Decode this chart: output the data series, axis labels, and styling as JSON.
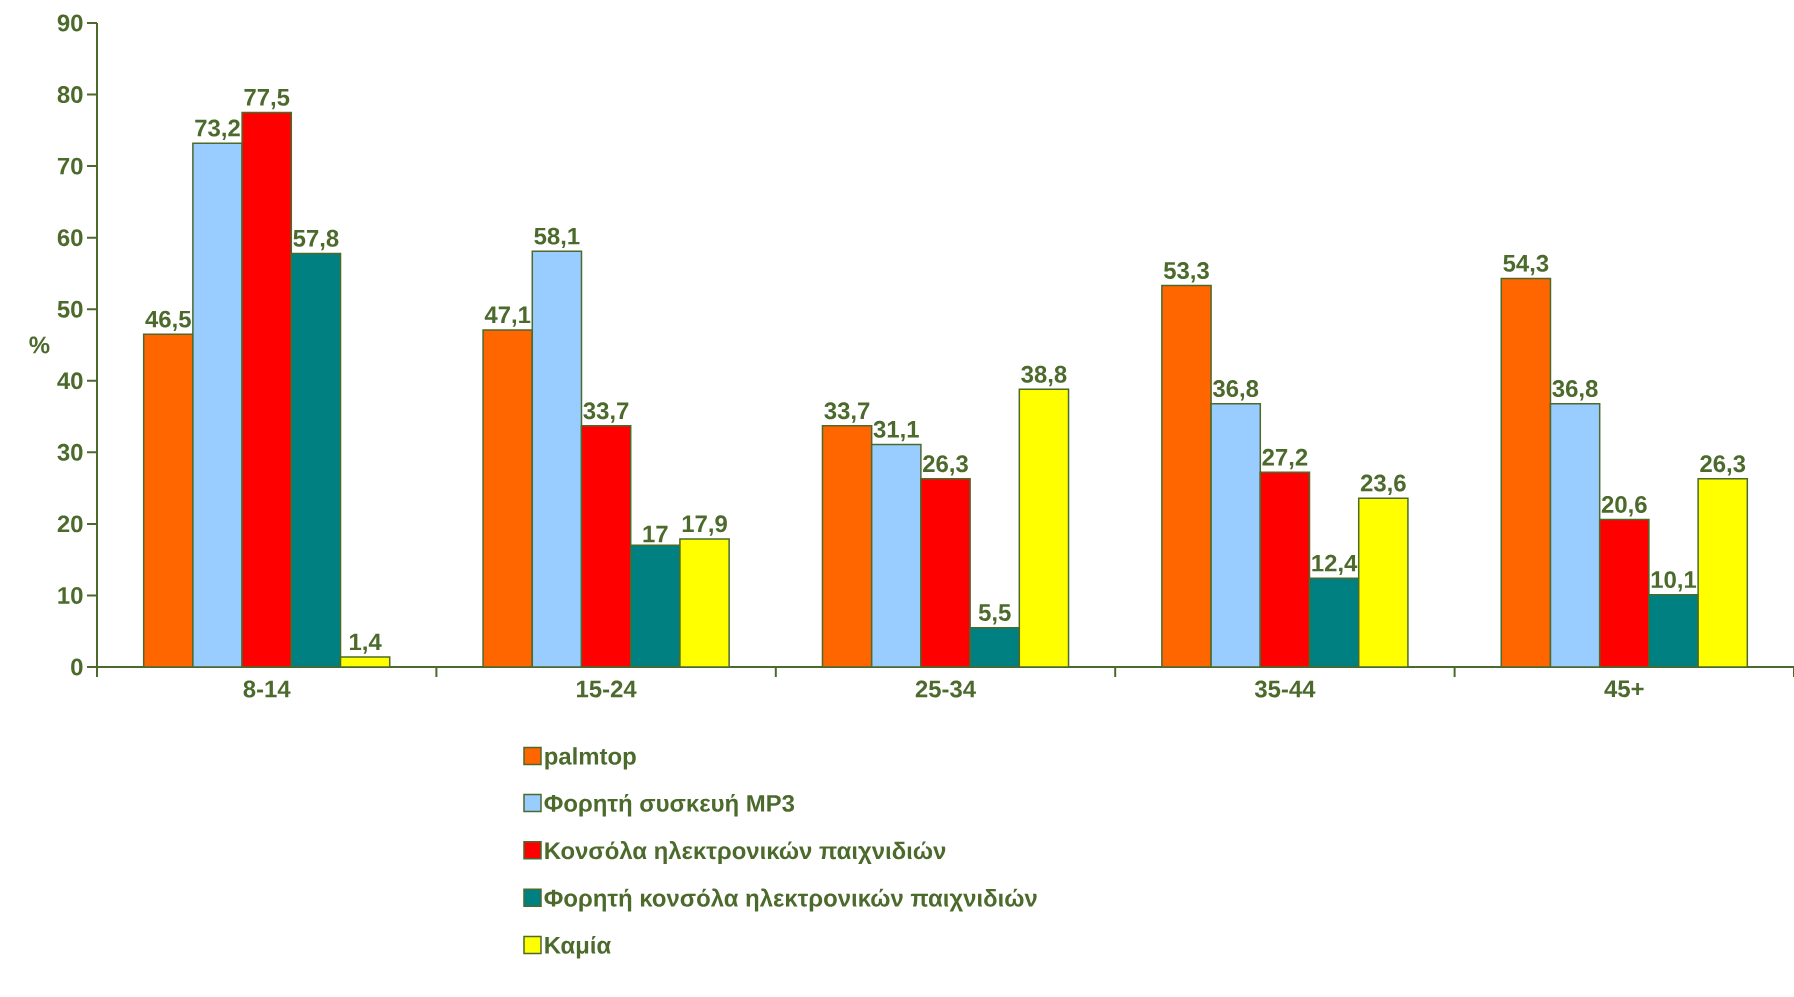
{
  "chart_data": {
    "type": "bar",
    "ylabel": "%",
    "categories": [
      "8-14",
      "15-24",
      "25-34",
      "35-44",
      "45+"
    ],
    "series": [
      {
        "name": "palmtop",
        "color": "#ff6600",
        "values": [
          46.5,
          47.1,
          33.7,
          53.3,
          54.3
        ],
        "value_labels": [
          "46,5",
          "47,1",
          "33,7",
          "53,3",
          "54,3"
        ]
      },
      {
        "name": "Φορητή συσκευή MP3",
        "color": "#99ccff",
        "values": [
          73.2,
          58.1,
          31.1,
          36.8,
          36.8
        ],
        "value_labels": [
          "73,2",
          "58,1",
          "31,1",
          "36,8",
          "36,8"
        ]
      },
      {
        "name": "Κονσόλα ηλεκτρονικών παιχνιδιών",
        "color": "#ff0000",
        "values": [
          77.5,
          33.7,
          26.3,
          27.2,
          20.6
        ],
        "value_labels": [
          "77,5",
          "33,7",
          "26,3",
          "27,2",
          "20,6"
        ]
      },
      {
        "name": "Φορητή κονσόλα ηλεκτρονικών παιχνιδιών",
        "color": "#008080",
        "values": [
          57.8,
          17,
          5.5,
          12.4,
          10.1
        ],
        "value_labels": [
          "57,8",
          "17",
          "5,5",
          "12,4",
          "10,1"
        ]
      },
      {
        "name": "Καμία",
        "color": "#ffff00",
        "values": [
          1.4,
          17.9,
          38.8,
          23.6,
          26.3
        ],
        "value_labels": [
          "1,4",
          "17,9",
          "38,8",
          "23,6",
          "26,3"
        ]
      }
    ],
    "ylim": [
      0,
      90
    ],
    "yticks": [
      0,
      10,
      20,
      30,
      40,
      50,
      60,
      70,
      80,
      90
    ],
    "legend": "bottom",
    "grid": false
  }
}
